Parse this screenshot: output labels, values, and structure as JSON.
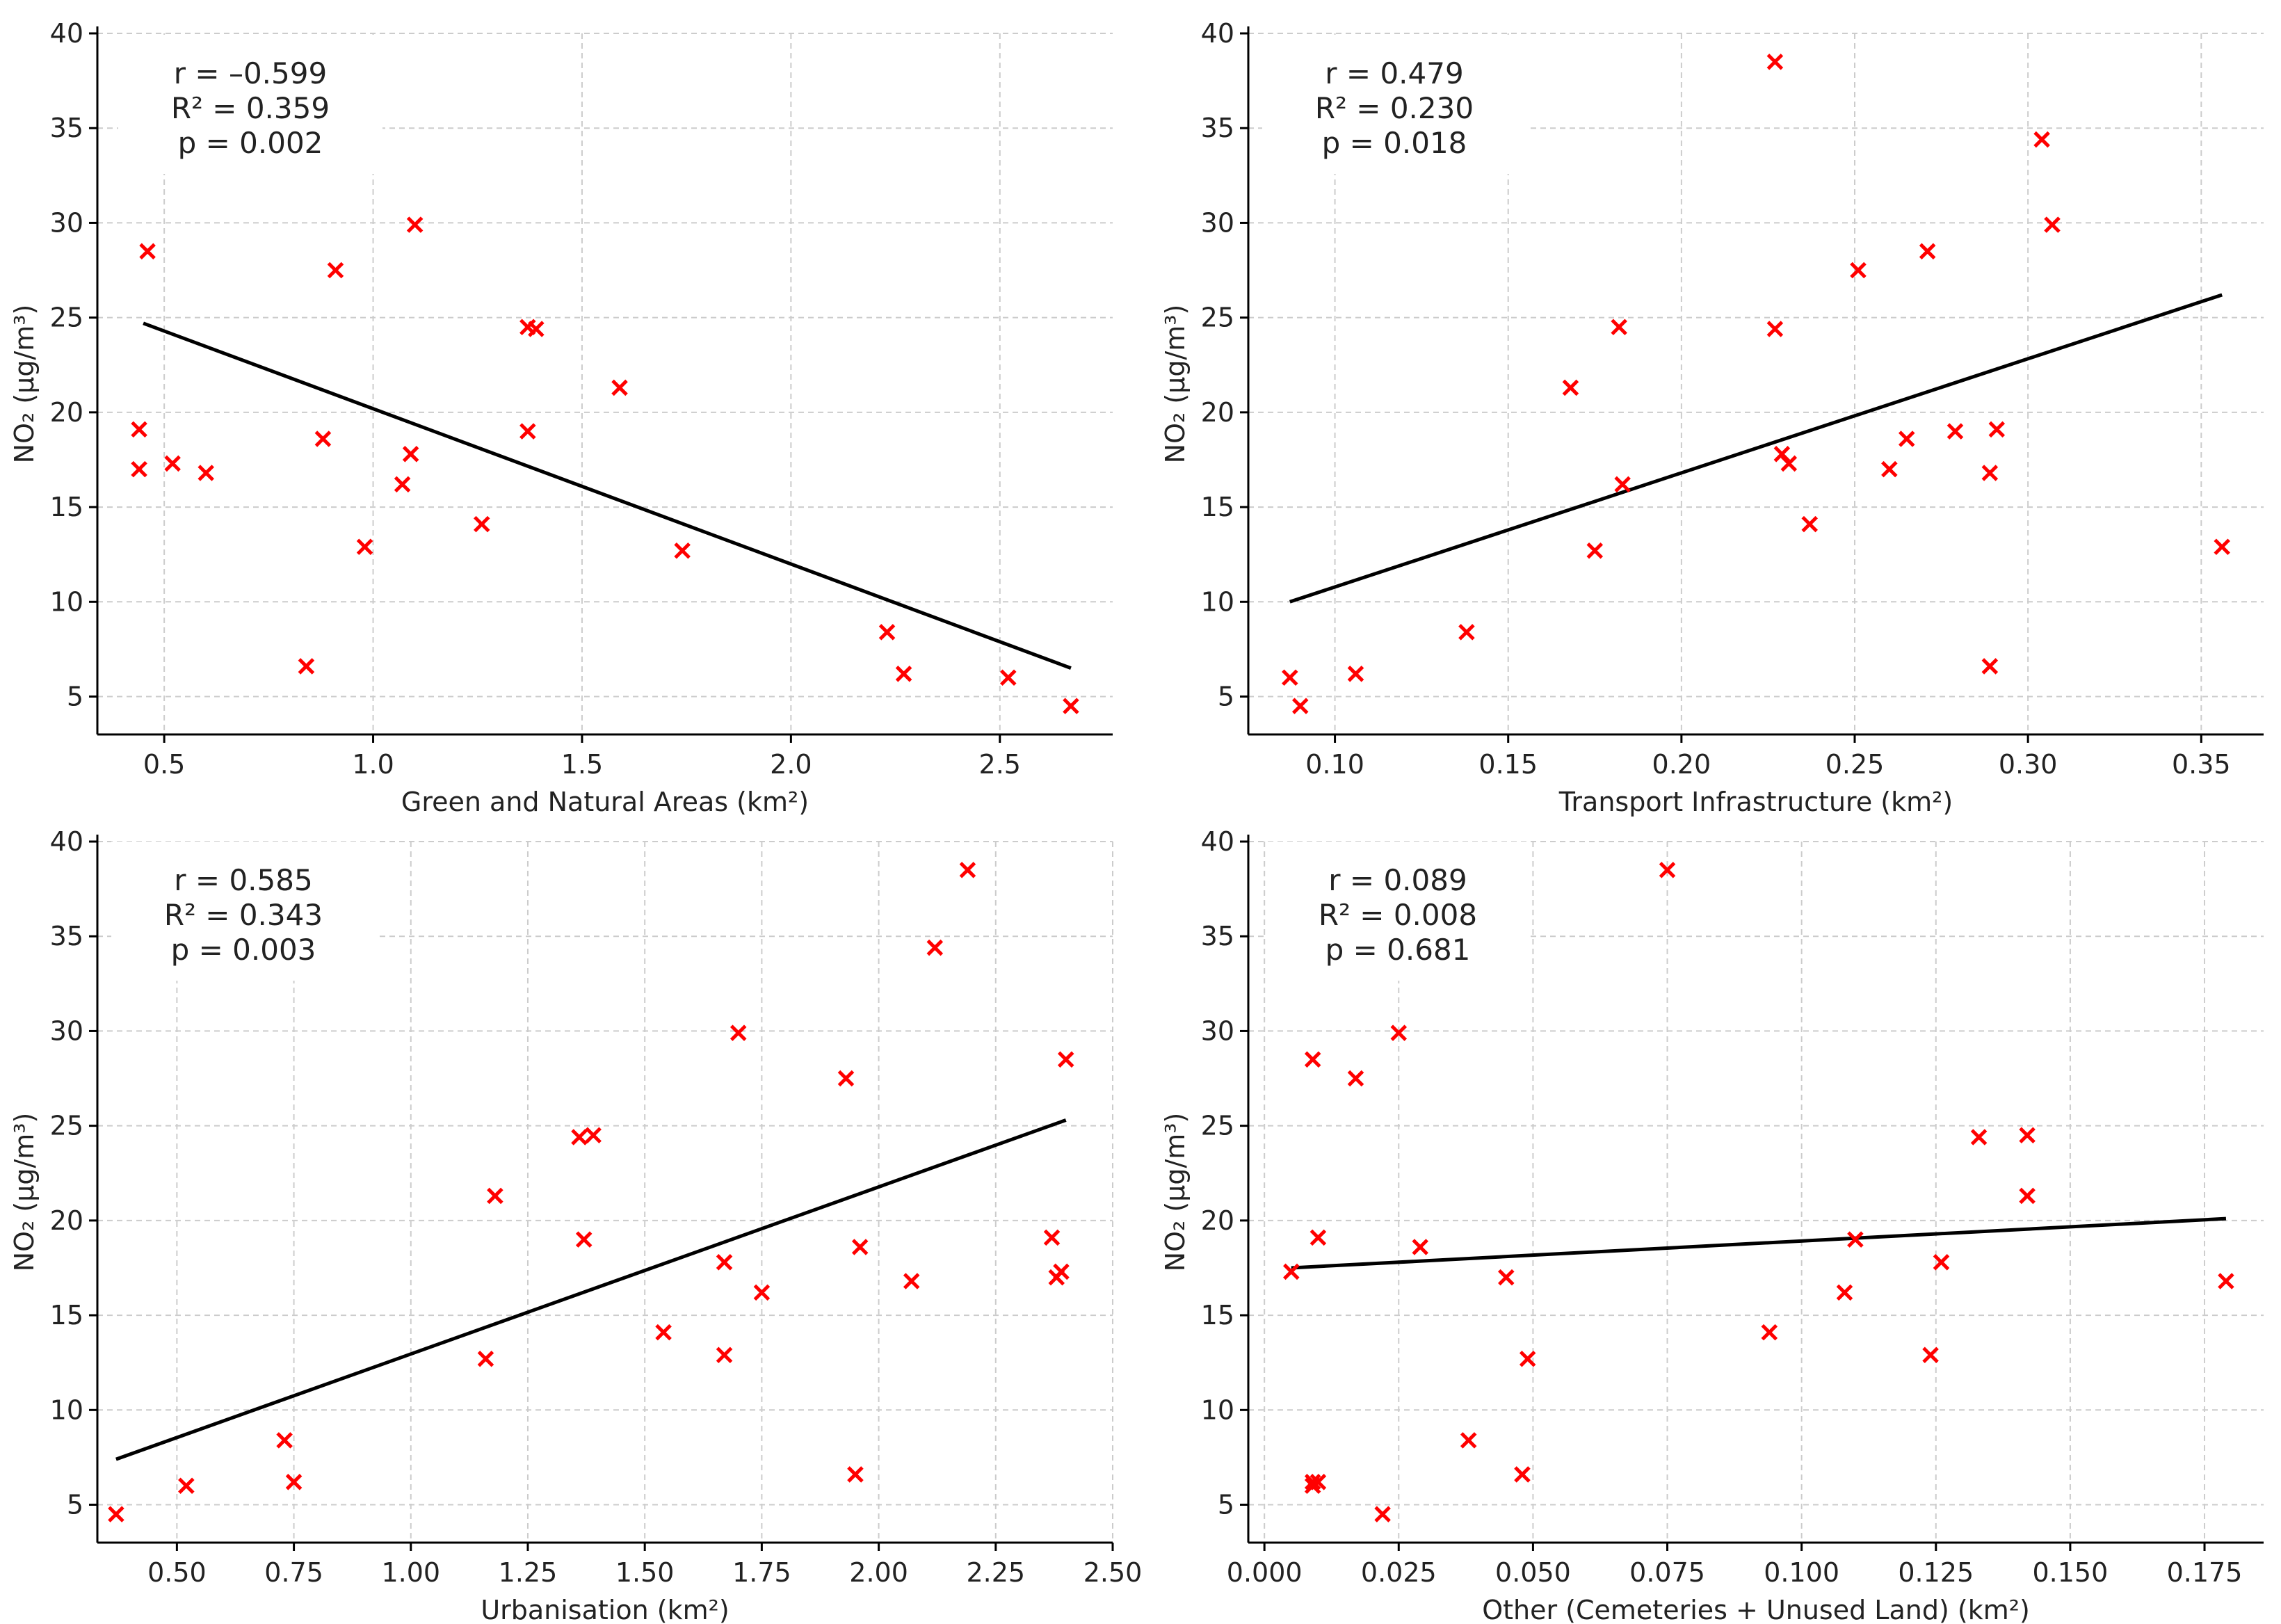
{
  "colors": {
    "marker": "#ff0000",
    "fit_line": "#000000",
    "grid": "#cccccc",
    "axis": "#000000",
    "background": "#ffffff"
  },
  "chart_data": [
    {
      "type": "scatter",
      "title": "",
      "xlabel": "Green and Natural Areas (km²)",
      "ylabel": "NO₂ (µg/m³)",
      "xlim": [
        0.34,
        2.77
      ],
      "ylim": [
        3,
        40
      ],
      "xticks": [
        0.5,
        1.0,
        1.5,
        2.0,
        2.5
      ],
      "xtick_labels": [
        "0.5",
        "1.0",
        "1.5",
        "2.0",
        "2.5"
      ],
      "yticks": [
        5,
        10,
        15,
        20,
        25,
        30,
        35,
        40
      ],
      "ytick_labels": [
        "5",
        "10",
        "15",
        "20",
        "25",
        "30",
        "35",
        "40"
      ],
      "grid": true,
      "marker": "x",
      "stats": [
        "r = –0.599",
        "R² = 0.359",
        "p = 0.002"
      ],
      "fit": {
        "x": [
          0.45,
          2.67
        ],
        "y": [
          24.7,
          6.5
        ]
      },
      "x": [
        0.44,
        0.44,
        0.46,
        0.52,
        0.6,
        0.84,
        0.88,
        0.91,
        0.98,
        1.07,
        1.09,
        1.1,
        1.26,
        1.37,
        1.37,
        1.39,
        1.59,
        1.74,
        2.23,
        2.27,
        2.52,
        2.67
      ],
      "y": [
        19.1,
        17.0,
        28.5,
        17.3,
        16.8,
        6.6,
        18.6,
        27.5,
        12.9,
        16.2,
        17.8,
        29.9,
        14.1,
        24.5,
        19.0,
        24.4,
        21.3,
        12.7,
        8.4,
        6.2,
        6.0,
        4.5
      ]
    },
    {
      "type": "scatter",
      "title": "",
      "xlabel": "Transport Infrastructure (km²)",
      "ylabel": "NO₂ (µg/m³)",
      "xlim": [
        0.075,
        0.368
      ],
      "ylim": [
        3,
        40
      ],
      "xticks": [
        0.1,
        0.15,
        0.2,
        0.25,
        0.3,
        0.35
      ],
      "xtick_labels": [
        "0.10",
        "0.15",
        "0.20",
        "0.25",
        "0.30",
        "0.35"
      ],
      "yticks": [
        5,
        10,
        15,
        20,
        25,
        30,
        35,
        40
      ],
      "ytick_labels": [
        "5",
        "10",
        "15",
        "20",
        "25",
        "30",
        "35",
        "40"
      ],
      "grid": true,
      "marker": "x",
      "stats": [
        "r = 0.479",
        "R² = 0.230",
        "p = 0.018"
      ],
      "fit": {
        "x": [
          0.087,
          0.356
        ],
        "y": [
          10.0,
          26.2
        ]
      },
      "x": [
        0.087,
        0.09,
        0.106,
        0.138,
        0.168,
        0.175,
        0.182,
        0.183,
        0.227,
        0.227,
        0.229,
        0.231,
        0.237,
        0.251,
        0.26,
        0.265,
        0.271,
        0.279,
        0.289,
        0.289,
        0.291,
        0.304,
        0.307,
        0.356
      ],
      "y": [
        6.0,
        4.5,
        6.2,
        8.4,
        21.3,
        12.7,
        24.5,
        16.2,
        38.5,
        24.4,
        17.8,
        17.3,
        14.1,
        27.5,
        17.0,
        18.6,
        28.5,
        19.0,
        6.6,
        16.8,
        19.1,
        34.4,
        29.9,
        12.9
      ]
    },
    {
      "type": "scatter",
      "title": "",
      "xlabel": "Urbanisation (km²)",
      "ylabel": "NO₂ (µg/m³)",
      "xlim": [
        0.33,
        2.5
      ],
      "ylim": [
        3,
        40
      ],
      "xticks": [
        0.5,
        0.75,
        1.0,
        1.25,
        1.5,
        1.75,
        2.0,
        2.25,
        2.5
      ],
      "xtick_labels": [
        "0.50",
        "0.75",
        "1.00",
        "1.25",
        "1.50",
        "1.75",
        "2.00",
        "2.25",
        "2.50"
      ],
      "yticks": [
        5,
        10,
        15,
        20,
        25,
        30,
        35,
        40
      ],
      "ytick_labels": [
        "5",
        "10",
        "15",
        "20",
        "25",
        "30",
        "35",
        "40"
      ],
      "grid": true,
      "marker": "x",
      "stats": [
        "r = 0.585",
        "R² = 0.343",
        "p = 0.003"
      ],
      "fit": {
        "x": [
          0.37,
          2.4
        ],
        "y": [
          7.4,
          25.3
        ]
      },
      "x": [
        0.37,
        0.52,
        0.73,
        0.75,
        1.16,
        1.18,
        1.36,
        1.37,
        1.39,
        1.54,
        1.67,
        1.67,
        1.7,
        1.75,
        1.93,
        1.95,
        1.96,
        2.07,
        2.12,
        2.19,
        2.37,
        2.38,
        2.39,
        2.4
      ],
      "y": [
        4.5,
        6.0,
        8.4,
        6.2,
        12.7,
        21.3,
        24.4,
        19.0,
        24.5,
        14.1,
        17.8,
        12.9,
        29.9,
        16.2,
        27.5,
        6.6,
        18.6,
        16.8,
        34.4,
        38.5,
        19.1,
        17.0,
        17.3,
        28.5
      ]
    },
    {
      "type": "scatter",
      "title": "",
      "xlabel": "Other (Cemeteries + Unused Land) (km²)",
      "ylabel": "NO₂ (µg/m³)",
      "xlim": [
        -0.003,
        0.186
      ],
      "ylim": [
        3,
        40
      ],
      "xticks": [
        0.0,
        0.025,
        0.05,
        0.075,
        0.1,
        0.125,
        0.15,
        0.175
      ],
      "xtick_labels": [
        "0.000",
        "0.025",
        "0.050",
        "0.075",
        "0.100",
        "0.125",
        "0.150",
        "0.175"
      ],
      "yticks": [
        5,
        10,
        15,
        20,
        25,
        30,
        35,
        40
      ],
      "ytick_labels": [
        "5",
        "10",
        "15",
        "20",
        "25",
        "30",
        "35",
        "40"
      ],
      "grid": true,
      "marker": "x",
      "stats": [
        "r = 0.089",
        "R² = 0.008",
        "p = 0.681"
      ],
      "fit": {
        "x": [
          0.005,
          0.179
        ],
        "y": [
          17.5,
          20.1
        ]
      },
      "x": [
        0.005,
        0.009,
        0.009,
        0.01,
        0.01,
        0.017,
        0.022,
        0.025,
        0.029,
        0.038,
        0.045,
        0.048,
        0.049,
        0.075,
        0.094,
        0.108,
        0.11,
        0.124,
        0.126,
        0.133,
        0.142,
        0.142,
        0.179,
        0.009
      ],
      "y": [
        17.3,
        28.5,
        6.0,
        19.1,
        6.2,
        27.5,
        4.5,
        29.9,
        18.6,
        8.4,
        17.0,
        6.6,
        12.7,
        38.5,
        14.1,
        16.2,
        19.0,
        12.9,
        17.8,
        24.4,
        24.5,
        21.3,
        16.8,
        6.2
      ]
    }
  ]
}
